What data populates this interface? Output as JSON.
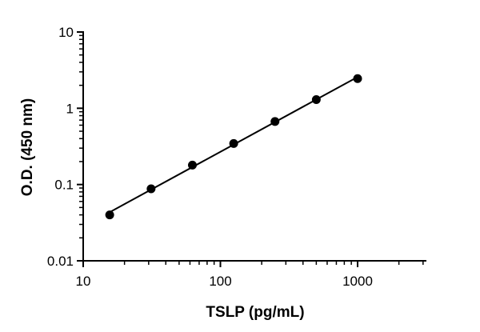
{
  "chart_data": {
    "type": "scatter",
    "title": "",
    "xlabel": "TSLP (pg/mL)",
    "ylabel": "O.D. (450 nm)",
    "xscale": "log",
    "yscale": "log",
    "xlim": [
      10,
      3000
    ],
    "ylim": [
      0.01,
      10
    ],
    "xticks": [
      10,
      100,
      1000
    ],
    "xtick_labels": [
      "10",
      "100",
      "1000"
    ],
    "yticks": [
      0.01,
      0.1,
      1,
      10
    ],
    "ytick_labels": [
      "0.01",
      "0.1",
      "1",
      "10"
    ],
    "grid": false,
    "series": [
      {
        "x": [
          15.6,
          31.25,
          62.5,
          125,
          250,
          500,
          1000
        ],
        "y": [
          0.04,
          0.088,
          0.18,
          0.345,
          0.67,
          1.3,
          2.45
        ],
        "marker": "circle",
        "color": "#000000",
        "fit_line": true
      }
    ]
  }
}
